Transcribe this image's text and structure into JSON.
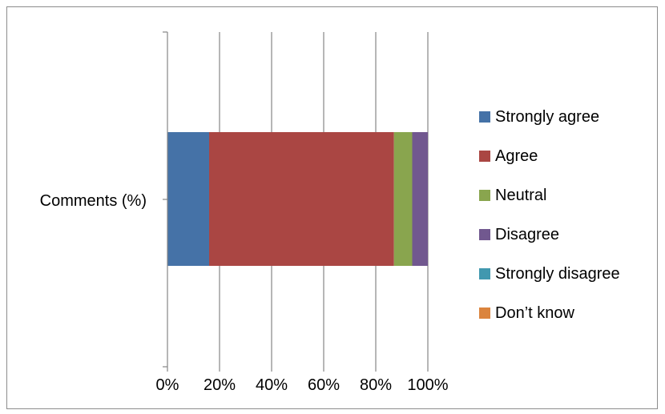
{
  "chart_data": {
    "type": "bar",
    "orientation": "horizontal",
    "stacked": "percent",
    "categories": [
      "Comments (%)"
    ],
    "series": [
      {
        "name": "Strongly agree",
        "values": [
          16
        ],
        "color": "#4572a7"
      },
      {
        "name": "Agree",
        "values": [
          71
        ],
        "color": "#aa4643"
      },
      {
        "name": "Neutral",
        "values": [
          7
        ],
        "color": "#89a54e"
      },
      {
        "name": "Disagree",
        "values": [
          6
        ],
        "color": "#71588f"
      },
      {
        "name": "Strongly disagree",
        "values": [
          0
        ],
        "color": "#4198af"
      },
      {
        "name": "Don’t know",
        "values": [
          0
        ],
        "color": "#db843d"
      }
    ],
    "xlim": [
      0,
      100
    ],
    "xticks": [
      "0%",
      "20%",
      "40%",
      "60%",
      "80%",
      "100%"
    ],
    "grid": "vertical",
    "legend": "right",
    "title": "",
    "xlabel": "",
    "ylabel": ""
  }
}
